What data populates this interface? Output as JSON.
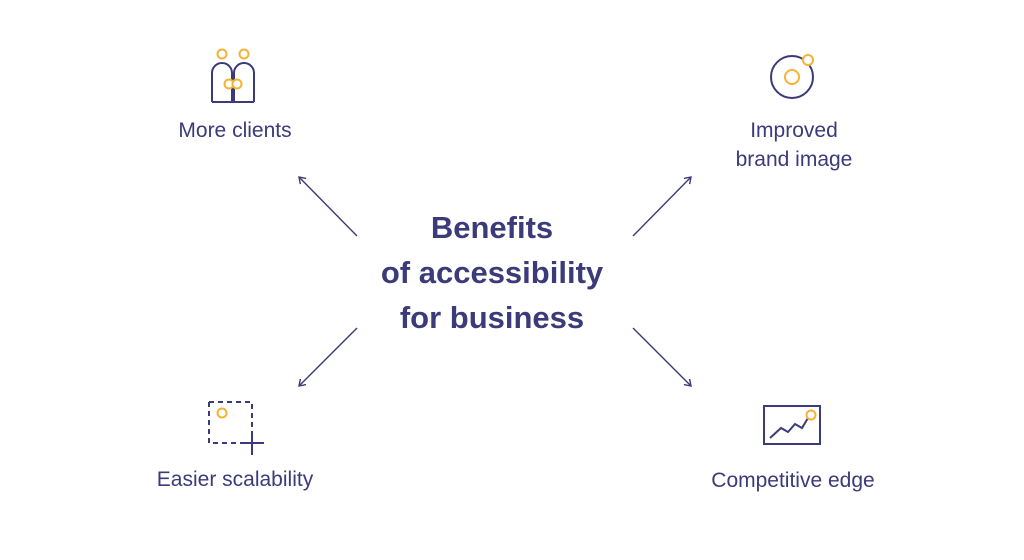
{
  "center": {
    "lines": [
      "Benefits",
      "of accessibility",
      "for business"
    ]
  },
  "nodes": {
    "top_left": {
      "label": "More clients"
    },
    "top_right": {
      "lines": [
        "Improved",
        "brand image"
      ]
    },
    "bottom_left": {
      "label": "Easier scalability"
    },
    "bottom_right": {
      "label": "Competitive edge"
    }
  },
  "colors": {
    "text": "#3b3a7a",
    "line": "#3b3a7a",
    "accent": "#f5b335"
  },
  "icons": {
    "top_left": "people-icon",
    "top_right": "target-icon",
    "bottom_left": "dashed-square-plus-icon",
    "bottom_right": "chart-icon"
  }
}
